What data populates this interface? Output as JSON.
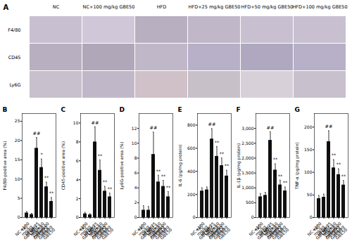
{
  "chart_data": [
    {
      "type": "image_grid",
      "title": "A",
      "categories": [
        "NC",
        "NC+100 mg/kg GBE50",
        "HFD",
        "HFD+25 mg/kg GBE50",
        "HFD+50 mg/kg GBE50",
        "HFD+100 mg/kg GBE50"
      ],
      "series": [
        {
          "name": "F4/80",
          "colors": [
            "#c8c0d0",
            "#d0c8d8",
            "#b8b0c0",
            "#c0b8c8",
            "#c8c0d0",
            "#c8c0d0"
          ]
        },
        {
          "name": "CD45",
          "colors": [
            "#b8b0c0",
            "#b0a8b8",
            "#c0b8c8",
            "#b8b0c8",
            "#b0a8c0",
            "#b8b0c8"
          ]
        },
        {
          "name": "Ly6G",
          "colors": [
            "#c8c0cc",
            "#c0b8c8",
            "#d0c0c8",
            "#c8c0c8",
            "#d8d0d8",
            "#c8c0cc"
          ]
        }
      ]
    },
    {
      "type": "bar",
      "title": "B",
      "ylabel": "F4/80-positive area (%)",
      "color": "#111111",
      "categories": [
        "NC",
        "NC+100\nmg/kg\nGBE50",
        "HFD",
        "HFD+25\nmg/kg\nGBE50",
        "HFD+50\nmg/kg\nGBE50",
        "HFD+100\nmg/kg\nGBE50"
      ],
      "values": [
        1.2,
        0.8,
        18.0,
        13.0,
        8.0,
        4.2
      ],
      "errors": [
        0.4,
        0.3,
        2.8,
        2.2,
        1.2,
        1.0
      ],
      "ylim": [
        0,
        27
      ],
      "yticks": [
        0,
        5,
        10,
        15,
        20,
        25
      ],
      "annotations": [
        {
          "x": "HFD",
          "text": "##"
        },
        {
          "x": "HFD+25\nmg/kg\nGBE50",
          "text": "*"
        },
        {
          "x": "HFD+50\nmg/kg\nGBE50",
          "text": "**"
        },
        {
          "x": "HFD+100\nmg/kg\nGBE50",
          "text": "**"
        }
      ]
    },
    {
      "type": "bar",
      "title": "C",
      "ylabel": "CD45-positive area (%)",
      "color": "#111111",
      "categories": [
        "NC",
        "NC+100\nmg/kg\nGBE50",
        "HFD",
        "HFD+25\nmg/kg\nGBE50",
        "HFD+50\nmg/kg\nGBE50",
        "HFD+100\nmg/kg\nGBE50"
      ],
      "values": [
        0.4,
        0.3,
        8.0,
        5.0,
        2.8,
        2.2
      ],
      "errors": [
        0.15,
        0.12,
        1.6,
        1.1,
        0.5,
        0.4
      ],
      "ylim": [
        0,
        11
      ],
      "yticks": [
        0,
        2,
        4,
        6,
        8,
        10
      ],
      "annotations": [
        {
          "x": "HFD",
          "text": "##"
        },
        {
          "x": "HFD+25\nmg/kg\nGBE50",
          "text": "**"
        },
        {
          "x": "HFD+50\nmg/kg\nGBE50",
          "text": "**"
        },
        {
          "x": "HFD+100\nmg/kg\nGBE50",
          "text": "**"
        }
      ]
    },
    {
      "type": "bar",
      "title": "D",
      "ylabel": "Ly6G-positive area (%)",
      "color": "#111111",
      "categories": [
        "NC",
        "NC+100\nmg/kg\nGBE50",
        "HFD",
        "HFD+25\nmg/kg\nGBE50",
        "HFD+50\nmg/kg\nGBE50",
        "HFD+100\nmg/kg\nGBE50"
      ],
      "values": [
        1.0,
        1.0,
        8.5,
        4.8,
        4.2,
        2.8
      ],
      "errors": [
        0.6,
        0.5,
        3.0,
        0.9,
        0.8,
        0.7
      ],
      "ylim": [
        0,
        14
      ],
      "yticks": [
        0,
        2,
        4,
        6,
        8,
        10,
        12
      ],
      "annotations": [
        {
          "x": "HFD",
          "text": "##"
        },
        {
          "x": "HFD+25\nmg/kg\nGBE50",
          "text": "**"
        },
        {
          "x": "HFD+50\nmg/kg\nGBE50",
          "text": "**"
        },
        {
          "x": "HFD+100\nmg/kg\nGBE50",
          "text": "**"
        }
      ]
    },
    {
      "type": "bar",
      "title": "E",
      "ylabel": "IL-6 (pg/mg protein)",
      "color": "#111111",
      "categories": [
        "NC",
        "NC+100\nmg/kg\nGBE50",
        "HFD",
        "HFD+25\nmg/kg\nGBE50",
        "HFD+50\nmg/kg\nGBE50",
        "HFD+100\nmg/kg\nGBE50"
      ],
      "values": [
        230,
        240,
        680,
        530,
        450,
        360
      ],
      "errors": [
        28,
        25,
        90,
        85,
        65,
        50
      ],
      "ylim": [
        0,
        900
      ],
      "yticks": [
        0,
        200,
        400,
        600,
        800
      ],
      "annotations": [
        {
          "x": "HFD",
          "text": "##"
        },
        {
          "x": "HFD+25\nmg/kg\nGBE50",
          "text": "**"
        },
        {
          "x": "HFD+50\nmg/kg\nGBE50",
          "text": "**"
        },
        {
          "x": "HFD+100\nmg/kg\nGBE50",
          "text": "**"
        }
      ]
    },
    {
      "type": "bar",
      "title": "F",
      "ylabel": "IL-1β (pg/mg protein)",
      "color": "#111111",
      "categories": [
        "NC",
        "NC+100\nmg/kg\nGBE50",
        "HFD",
        "HFD+25\nmg/kg\nGBE50",
        "HFD+50\nmg/kg\nGBE50",
        "HFD+100\nmg/kg\nGBE50"
      ],
      "values": [
        700,
        750,
        2600,
        1600,
        1100,
        900
      ],
      "errors": [
        110,
        100,
        290,
        210,
        160,
        130
      ],
      "ylim": [
        0,
        3500
      ],
      "yticks": [
        0,
        500,
        1000,
        1500,
        2000,
        2500,
        3000
      ],
      "annotations": [
        {
          "x": "HFD",
          "text": "##"
        },
        {
          "x": "HFD+25\nmg/kg\nGBE50",
          "text": "**"
        },
        {
          "x": "HFD+50\nmg/kg\nGBE50",
          "text": "**"
        },
        {
          "x": "HFD+100\nmg/kg\nGBE50",
          "text": "**"
        }
      ]
    },
    {
      "type": "bar",
      "title": "G",
      "ylabel": "TNF-α (pg/mg protein)",
      "color": "#111111",
      "categories": [
        "NC",
        "NC+100\nmg/kg\nGBE50",
        "HFD",
        "HFD+25\nmg/kg\nGBE50",
        "HFD+50\nmg/kg\nGBE50",
        "HFD+100\nmg/kg\nGBE50"
      ],
      "values": [
        42,
        45,
        168,
        110,
        95,
        72
      ],
      "errors": [
        7,
        7,
        24,
        18,
        13,
        10
      ],
      "ylim": [
        0,
        230
      ],
      "yticks": [
        0,
        50,
        100,
        150,
        200
      ],
      "annotations": [
        {
          "x": "HFD",
          "text": "##"
        },
        {
          "x": "HFD+25\nmg/kg\nGBE50",
          "text": "**"
        },
        {
          "x": "HFD+50\nmg/kg\nGBE50",
          "text": "**"
        },
        {
          "x": "HFD+100\nmg/kg\nGBE50",
          "text": "**"
        }
      ]
    }
  ]
}
